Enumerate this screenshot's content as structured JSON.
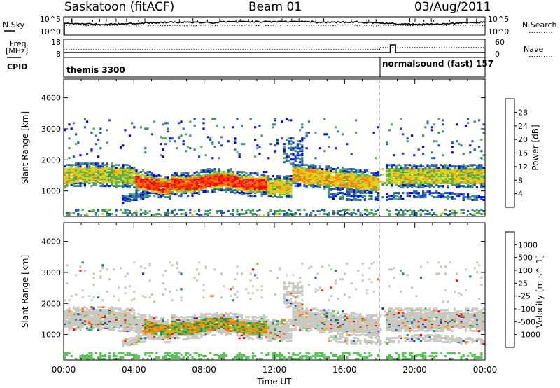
{
  "header": {
    "station": "Saskatoon (fitACF)",
    "beam": "Beam 01",
    "date": "03/Aug/2011"
  },
  "panels": {
    "nsky_label": "N.Sky",
    "nsearch_label": "N.Search",
    "nsky_ticks": [
      "10^5",
      "10^0"
    ],
    "nsky_ticks_right": [
      "10^5",
      "10^0"
    ],
    "freq_label": "Freq.",
    "freq_unit": "[MHz]",
    "freq_ticks": [
      "18",
      "8"
    ],
    "nave_label": "Nave",
    "nave_ticks": [
      "60",
      "0"
    ],
    "cpid_label": "CPID",
    "cpid_segments": [
      "themis 3300",
      "normalsound (fast) 157"
    ]
  },
  "colors": {
    "power_scale": [
      "#0000ff",
      "#1e50c8",
      "#3c8c78",
      "#50b450",
      "#c8dc28",
      "#ffb400",
      "#ff7800",
      "#ff3c00",
      "#ff0000"
    ],
    "velocity_scale": [
      "#1e3cb4",
      "#1e6eb4",
      "#288c50",
      "#50c850",
      "#c8c8c0",
      "#c8c8c0",
      "#ffa000",
      "#ff7800",
      "#ff3c00",
      "#ff0000"
    ]
  },
  "chart_data": [
    {
      "type": "heatmap",
      "name": "power",
      "xlabel": "",
      "ylabel": "Slant Range [km]",
      "xlim": [
        0,
        24
      ],
      "ylim": [
        180,
        4600
      ],
      "yticks": [
        1000,
        2000,
        3000,
        4000
      ],
      "xticks": [
        "00:00",
        "04:00",
        "08:00",
        "12:00",
        "16:00",
        "20:00",
        "00:00"
      ],
      "colorbar_label": "Power [dB]",
      "colorbar_ticks": [
        "28",
        "24",
        "20",
        "16",
        "12",
        "8",
        "4"
      ]
    },
    {
      "type": "heatmap",
      "name": "velocity",
      "xlabel": "Time UT",
      "ylabel": "Slant Range [km]",
      "xlim": [
        0,
        24
      ],
      "ylim": [
        180,
        4600
      ],
      "yticks": [
        1000,
        2000,
        3000,
        4000
      ],
      "xticks": [
        "00:00",
        "04:00",
        "08:00",
        "12:00",
        "16:00",
        "20:00",
        "00:00"
      ],
      "colorbar_label": "Velocity [m s^-1]",
      "colorbar_ticks": [
        "1000",
        "500",
        "100",
        "25",
        "-25",
        "-100",
        "-500",
        "-1000"
      ]
    }
  ]
}
